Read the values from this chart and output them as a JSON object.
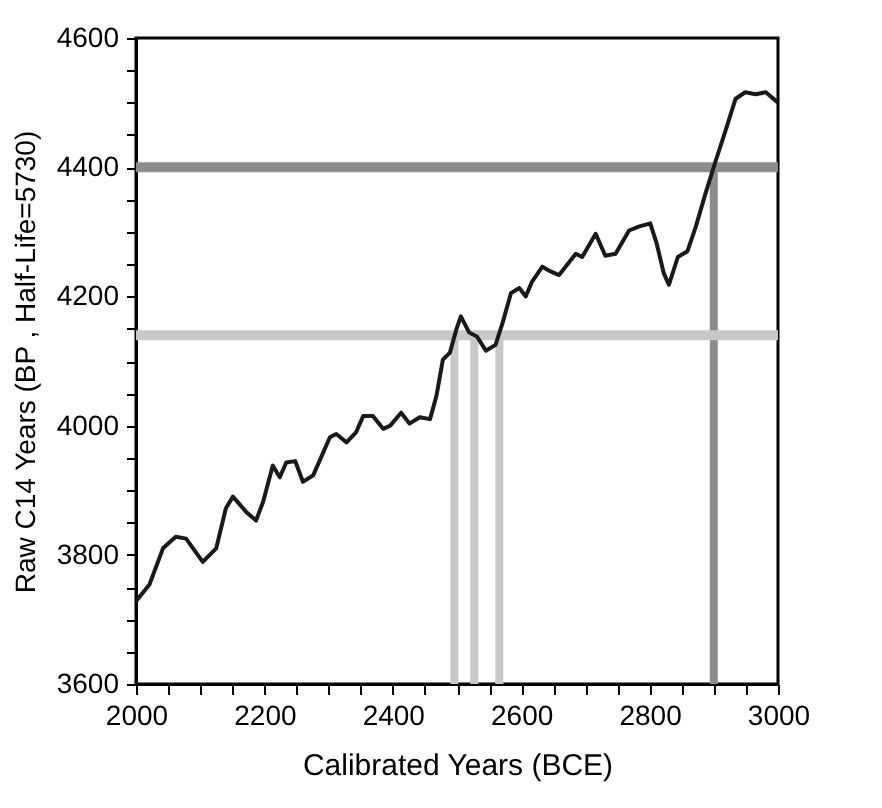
{
  "chart_data": {
    "type": "line",
    "xlabel": "Calibrated Years (BCE)",
    "ylabel": "Raw C14 Years (BP , Half-Life=5730)",
    "xlim": [
      2000,
      3000
    ],
    "ylim": [
      3600,
      4600
    ],
    "xticks": [
      2000,
      {
        "value": 2050,
        "label": null
      },
      {
        "value": 2100,
        "label": null
      },
      {
        "value": 2150,
        "label": null
      },
      2200,
      {
        "value": 2250,
        "label": null
      },
      {
        "value": 2300,
        "label": null
      },
      {
        "value": 2350,
        "label": null
      },
      2400,
      {
        "value": 2450,
        "label": null
      },
      {
        "value": 2500,
        "label": null
      },
      {
        "value": 2550,
        "label": null
      },
      2600,
      {
        "value": 2650,
        "label": null
      },
      {
        "value": 2700,
        "label": null
      },
      {
        "value": 2750,
        "label": null
      },
      2800,
      {
        "value": 2850,
        "label": null
      },
      {
        "value": 2900,
        "label": null
      },
      {
        "value": 2950,
        "label": null
      },
      3000
    ],
    "yticks": [
      3600,
      {
        "value": 3650,
        "label": null
      },
      {
        "value": 3700,
        "label": null
      },
      {
        "value": 3750,
        "label": null
      },
      3800,
      {
        "value": 3850,
        "label": null
      },
      {
        "value": 3900,
        "label": null
      },
      {
        "value": 3950,
        "label": null
      },
      4000,
      {
        "value": 4050,
        "label": null
      },
      {
        "value": 4100,
        "label": null
      },
      {
        "value": 4150,
        "label": null
      },
      4200,
      {
        "value": 4250,
        "label": null
      },
      {
        "value": 4300,
        "label": null
      },
      {
        "value": 4350,
        "label": null
      },
      4400,
      {
        "value": 4450,
        "label": null
      },
      {
        "value": 4500,
        "label": null
      },
      {
        "value": 4550,
        "label": null
      },
      4600
    ],
    "grid": false,
    "marker": "none",
    "line_style": "solid",
    "ref_lines": [
      {
        "axis": "y",
        "value": 4400,
        "color": "#8c8c8c"
      },
      {
        "axis": "y",
        "value": 4140,
        "color": "#c8c8c8"
      }
    ],
    "series": [
      {
        "color": "#c8c8c8",
        "x": [
          2496,
          2496
        ],
        "values": [
          3600,
          4140
        ]
      },
      {
        "color": "#c8c8c8",
        "x": [
          2527,
          2527
        ],
        "values": [
          3600,
          4140
        ]
      },
      {
        "color": "#c8c8c8",
        "x": [
          2566,
          2566
        ],
        "values": [
          3600,
          4140
        ]
      },
      {
        "color": "#8c8c8c",
        "x": [
          2900,
          2900
        ],
        "values": [
          3600,
          4400
        ]
      },
      {
        "color": "#1a1a1a",
        "x": [
          2000,
          2021,
          2042,
          2062,
          2078,
          2104,
          2125,
          2140,
          2151,
          2172,
          2187,
          2198,
          2213,
          2224,
          2234,
          2248,
          2260,
          2276,
          2302,
          2312,
          2328,
          2343,
          2354,
          2369,
          2385,
          2396,
          2413,
          2426,
          2442,
          2458,
          2468,
          2478,
          2489,
          2499,
          2506,
          2519,
          2531,
          2545,
          2560,
          2571,
          2584,
          2597,
          2607,
          2617,
          2633,
          2645,
          2659,
          2685,
          2695,
          2716,
          2731,
          2747,
          2768,
          2783,
          2801,
          2811,
          2822,
          2830,
          2844,
          2859,
          2872,
          2887,
          2903,
          2918,
          2934,
          2949,
          2965,
          2981,
          3000
        ],
        "values": [
          3728,
          3754,
          3810,
          3828,
          3825,
          3789,
          3810,
          3872,
          3890,
          3866,
          3853,
          3882,
          3938,
          3920,
          3943,
          3945,
          3913,
          3923,
          3982,
          3987,
          3974,
          3990,
          4015,
          4015,
          3995,
          4000,
          4020,
          4003,
          4013,
          4010,
          4046,
          4102,
          4113,
          4149,
          4169,
          4144,
          4138,
          4116,
          4125,
          4159,
          4205,
          4213,
          4200,
          4223,
          4246,
          4239,
          4233,
          4266,
          4261,
          4297,
          4263,
          4266,
          4302,
          4308,
          4313,
          4282,
          4236,
          4218,
          4261,
          4270,
          4308,
          4359,
          4410,
          4456,
          4506,
          4516,
          4513,
          4516,
          4500
        ]
      }
    ]
  }
}
